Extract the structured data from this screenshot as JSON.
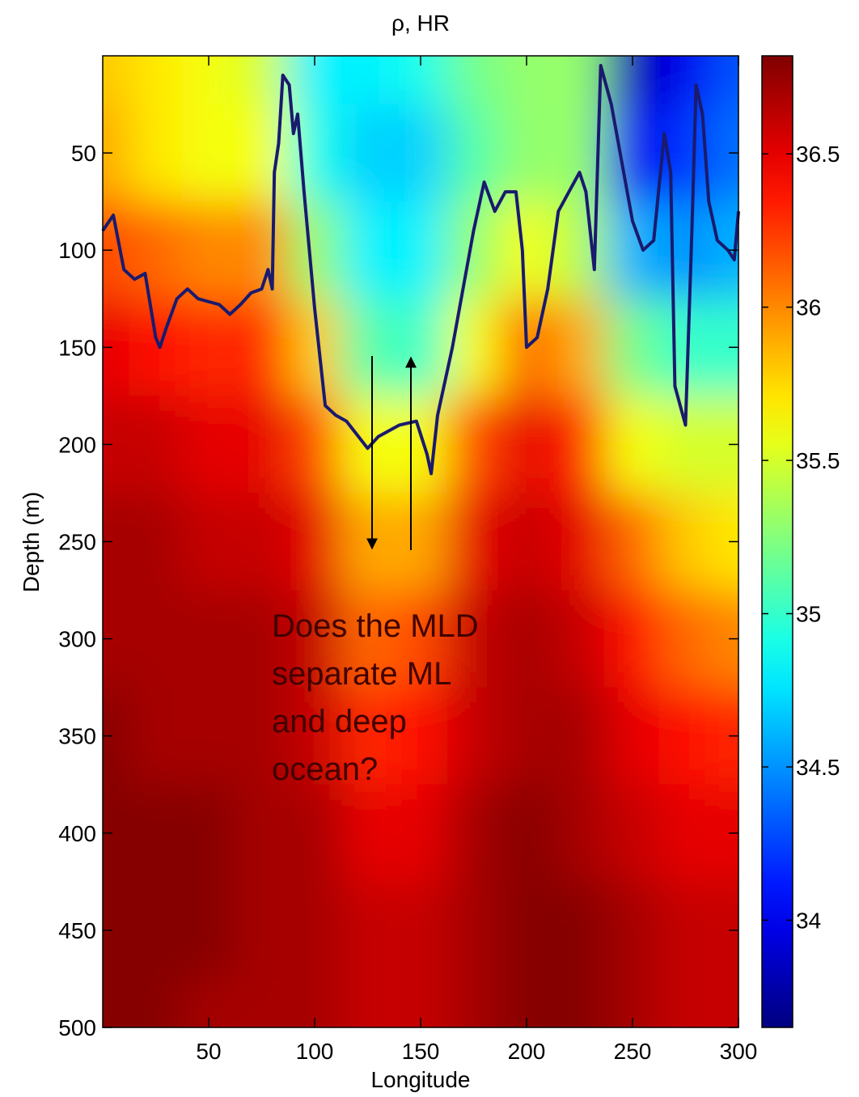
{
  "chart_data": {
    "type": "heatmap",
    "title": "ρ, HR",
    "x_label": "Longitude",
    "y_label": "Depth (m)",
    "annotation": [
      "Does the MLD",
      "separate ML",
      "and deep",
      "ocean?"
    ],
    "xlim": [
      0,
      300
    ],
    "ylim": [
      0,
      500
    ],
    "y_reversed": true,
    "xticks": [
      50,
      100,
      150,
      200,
      250,
      300
    ],
    "yticks": [
      50,
      100,
      150,
      200,
      250,
      300,
      350,
      400,
      450,
      500
    ],
    "colormap": "jet",
    "clim": [
      33.65,
      36.82
    ],
    "cticks": [
      34,
      34.5,
      35,
      35.5,
      36,
      36.5
    ],
    "x": [
      0,
      25,
      50,
      75,
      100,
      125,
      150,
      175,
      200,
      225,
      250,
      275,
      300
    ],
    "y": [
      0,
      50,
      100,
      150,
      200,
      250,
      300,
      350,
      400,
      450,
      500
    ],
    "z": [
      [
        35.8,
        35.7,
        35.6,
        35.5,
        34.8,
        34.8,
        34.9,
        35.2,
        35.3,
        35.3,
        33.8,
        34.0,
        34.3
      ],
      [
        35.9,
        35.7,
        35.6,
        35.6,
        34.9,
        34.7,
        34.7,
        35.1,
        35.3,
        35.3,
        34.0,
        34.2,
        34.4
      ],
      [
        36.2,
        36.1,
        36.0,
        36.0,
        35.3,
        34.8,
        34.8,
        35.3,
        35.6,
        35.4,
        34.6,
        34.5,
        34.6
      ],
      [
        36.5,
        36.4,
        36.3,
        36.3,
        35.8,
        35.1,
        35.0,
        35.6,
        36.1,
        35.9,
        35.2,
        35.0,
        35.0
      ],
      [
        36.6,
        36.6,
        36.5,
        36.5,
        36.2,
        35.6,
        35.6,
        36.2,
        36.5,
        36.3,
        35.6,
        35.5,
        35.5
      ],
      [
        36.7,
        36.7,
        36.6,
        36.6,
        36.5,
        35.9,
        35.9,
        36.5,
        36.6,
        36.5,
        36.1,
        35.8,
        35.7
      ],
      [
        36.7,
        36.7,
        36.7,
        36.7,
        36.6,
        36.1,
        36.2,
        36.6,
        36.7,
        36.6,
        36.4,
        36.1,
        36.0
      ],
      [
        36.8,
        36.7,
        36.7,
        36.7,
        36.6,
        36.3,
        36.4,
        36.6,
        36.7,
        36.7,
        36.5,
        36.4,
        36.3
      ],
      [
        36.8,
        36.8,
        36.8,
        36.7,
        36.7,
        36.5,
        36.5,
        36.7,
        36.8,
        36.7,
        36.6,
        36.5,
        36.5
      ],
      [
        36.8,
        36.8,
        36.8,
        36.7,
        36.7,
        36.6,
        36.6,
        36.7,
        36.8,
        36.8,
        36.7,
        36.6,
        36.6
      ],
      [
        36.8,
        36.8,
        36.7,
        36.7,
        36.7,
        36.6,
        36.6,
        36.7,
        36.8,
        36.8,
        36.7,
        36.6,
        36.6
      ]
    ],
    "line": {
      "color": "#1a1a6e",
      "x": [
        0,
        5,
        10,
        15,
        20,
        25,
        27,
        30,
        35,
        40,
        45,
        55,
        60,
        65,
        70,
        75,
        78,
        80,
        81,
        83,
        85,
        88,
        90,
        92,
        95,
        100,
        105,
        110,
        115,
        120,
        125,
        130,
        140,
        148,
        153,
        155,
        158,
        165,
        170,
        175,
        180,
        185,
        190,
        195,
        198,
        200,
        205,
        210,
        215,
        220,
        225,
        228,
        232,
        235,
        240,
        245,
        250,
        255,
        260,
        265,
        268,
        270,
        275,
        278,
        280,
        283,
        286,
        290,
        295,
        298,
        300
      ],
      "values": [
        90,
        82,
        110,
        115,
        112,
        145,
        150,
        140,
        125,
        120,
        125,
        128,
        133,
        128,
        122,
        120,
        110,
        120,
        60,
        45,
        10,
        15,
        40,
        30,
        70,
        130,
        180,
        185,
        188,
        195,
        202,
        196,
        190,
        188,
        205,
        215,
        185,
        150,
        120,
        90,
        65,
        80,
        70,
        70,
        100,
        150,
        145,
        120,
        80,
        70,
        60,
        70,
        110,
        5,
        25,
        55,
        85,
        100,
        95,
        40,
        60,
        170,
        190,
        90,
        15,
        30,
        75,
        95,
        100,
        105,
        80
      ]
    }
  }
}
